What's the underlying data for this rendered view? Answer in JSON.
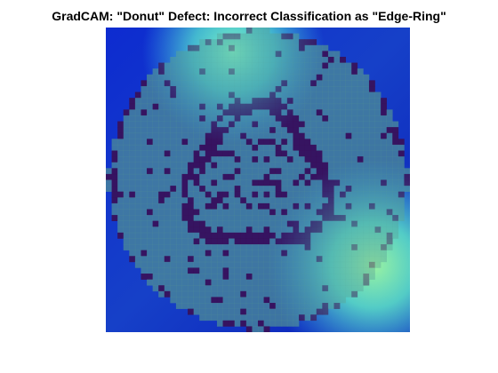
{
  "title": "GradCAM: \"Donut\" Defect: Incorrect Classification as \"Edge-Ring\"",
  "colors": {
    "figure_background": "#ffffff",
    "heatmap_low": "#0a1fb8",
    "heatmap_mid": "#2f8fe0",
    "heatmap_high": "#5ff0b8",
    "wafer_normal_die": "#4f8f96",
    "wafer_defect_die": "#3a1058"
  },
  "image": {
    "description_type": "wafer_map_with_gradcam_overlay",
    "grid_cells": 52,
    "colormap": "jet"
  }
}
